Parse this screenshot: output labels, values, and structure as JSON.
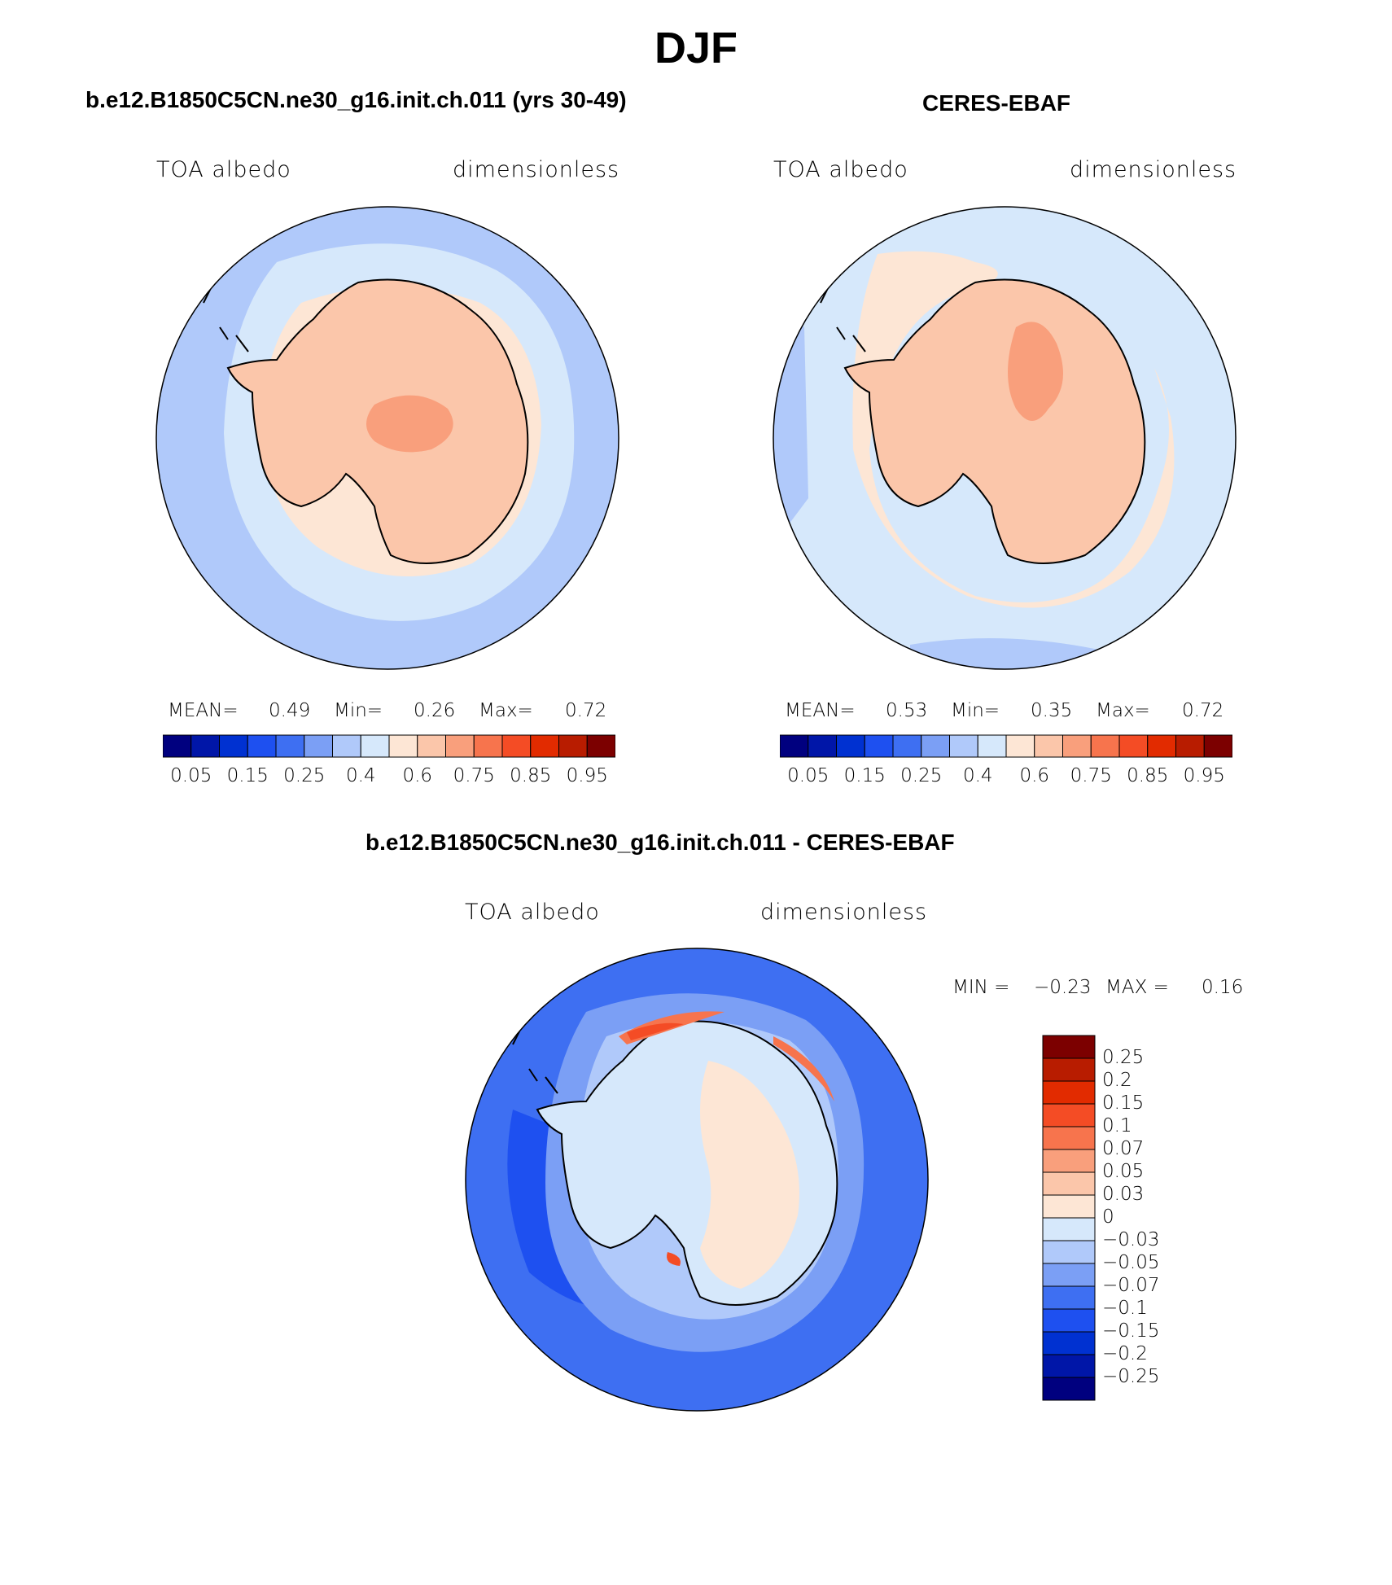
{
  "figure": {
    "title": "DJF"
  },
  "panels": [
    {
      "title": "b.e12.B1850C5CN.ne30_g16.init.ch.011 (yrs 30-49)",
      "left_label": "TOA albedo",
      "right_label": "dimensionless",
      "stats": {
        "mean_label": "MEAN=",
        "mean": "0.49",
        "min_label": "Min=",
        "min": "0.26",
        "max_label": "Max=",
        "max": "0.72"
      }
    },
    {
      "title": "CERES-EBAF",
      "left_label": "TOA albedo",
      "right_label": "dimensionless",
      "stats": {
        "mean_label": "MEAN=",
        "mean": "0.53",
        "min_label": "Min=",
        "min": "0.35",
        "max_label": "Max=",
        "max": "0.72"
      }
    },
    {
      "title": "b.e12.B1850C5CN.ne30_g16.init.ch.011 - CERES-EBAF",
      "left_label": "TOA albedo",
      "right_label": "dimensionless",
      "minmax": {
        "min_label": "MIN =",
        "min": "−0.23",
        "max_label": "MAX =",
        "max": "0.16"
      }
    }
  ],
  "colorbar_abs": {
    "colors": [
      "#00007f",
      "#0016a8",
      "#0031d1",
      "#1e50f0",
      "#3e6ff2",
      "#7b9ff5",
      "#b0c9fa",
      "#d6e8fb",
      "#fde6d5",
      "#fbc6aa",
      "#f99f7c",
      "#f7744d",
      "#f44c25",
      "#e22b00",
      "#b81c00",
      "#7c0000"
    ],
    "tick_labels": [
      "0.05",
      "0.15",
      "0.25",
      "0.4",
      "0.6",
      "0.75",
      "0.85",
      "0.95"
    ]
  },
  "colorbar_diff": {
    "colors_top_to_bottom": [
      "#7c0000",
      "#b81c00",
      "#e22b00",
      "#f44c25",
      "#f7744d",
      "#f99f7c",
      "#fbc6aa",
      "#fde6d5",
      "#d6e8fb",
      "#b0c9fa",
      "#7b9ff5",
      "#3e6ff2",
      "#1e50f0",
      "#0031d1",
      "#0016a8",
      "#00007f"
    ],
    "tick_labels": [
      "0.25",
      "0.2",
      "0.15",
      "0.1",
      "0.07",
      "0.05",
      "0.03",
      "0",
      "−0.03",
      "−0.05",
      "−0.07",
      "−0.1",
      "−0.15",
      "−0.2",
      "−0.25"
    ]
  },
  "map_colors": {
    "ocean_far_model": "#b0c9fa",
    "ocean_near_model": "#d6e8fb",
    "coast_band": "#fde6d5",
    "ice_sheet": "#fbc6aa",
    "plateau": "#f99f7c",
    "ocean_obs": "#d6e8fb",
    "diff_ocean": "#3e6ff2",
    "diff_deep": "#1e50f0",
    "diff_mid": "#7b9ff5",
    "diff_near": "#b0c9fa",
    "diff_land_neg": "#d6e8fb",
    "diff_land_pos": "#fde6d5",
    "diff_pos_strong": "#f44c25",
    "diff_pos_mid": "#f7744d",
    "coastline": "#000000"
  }
}
